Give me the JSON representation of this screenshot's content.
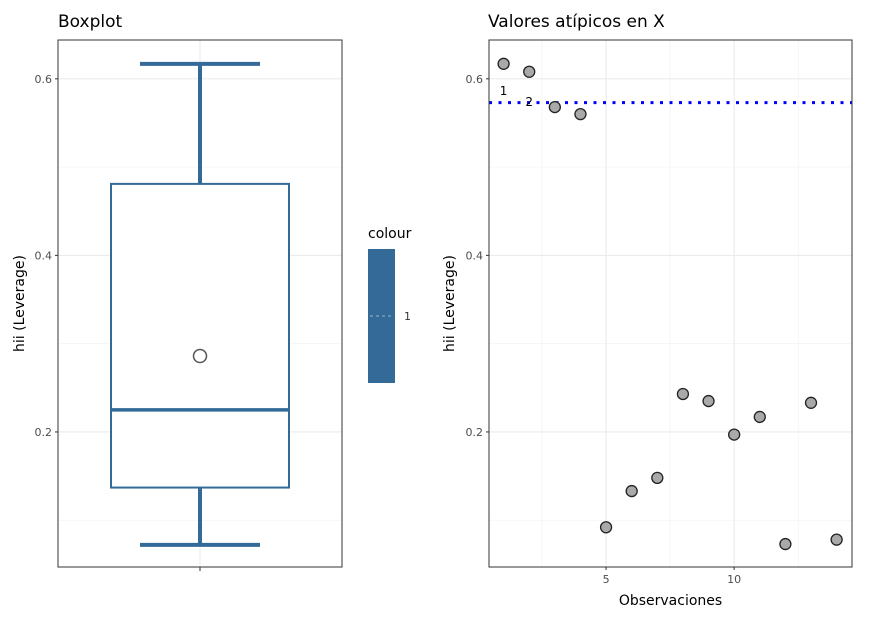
{
  "chart_data": [
    {
      "type": "box",
      "title": "Boxplot",
      "ylabel": "hii (Leverage)",
      "ylim": [
        0.047,
        0.644
      ],
      "yticks": [
        "0.2",
        "0.4",
        "0.6"
      ],
      "stats": {
        "min": 0.072,
        "q1": 0.137,
        "median": 0.225,
        "q3": 0.481,
        "max": 0.617,
        "mean": 0.286
      },
      "legend": {
        "title": "colour",
        "label": "1",
        "placement": "right"
      },
      "color": "#336A98"
    },
    {
      "type": "scatter",
      "title": "Valores atípicos en X",
      "xlabel": "Observaciones",
      "ylabel": "hii (Leverage)",
      "xlim": [
        0.43,
        14.6
      ],
      "ylim": [
        0.047,
        0.644
      ],
      "xticks": [
        "5",
        "10"
      ],
      "yticks": [
        "0.2",
        "0.4",
        "0.6"
      ],
      "x": [
        1,
        2,
        3,
        4,
        5,
        6,
        7,
        8,
        9,
        10,
        11,
        12,
        13,
        14
      ],
      "y": [
        0.617,
        0.608,
        0.568,
        0.56,
        0.092,
        0.133,
        0.148,
        0.243,
        0.235,
        0.197,
        0.217,
        0.073,
        0.233,
        0.078
      ],
      "threshold": 0.573,
      "threshold_color": "#0000FF",
      "labels": [
        {
          "x": 1,
          "text": "1"
        },
        {
          "x": 2,
          "text": "2"
        }
      ]
    }
  ]
}
